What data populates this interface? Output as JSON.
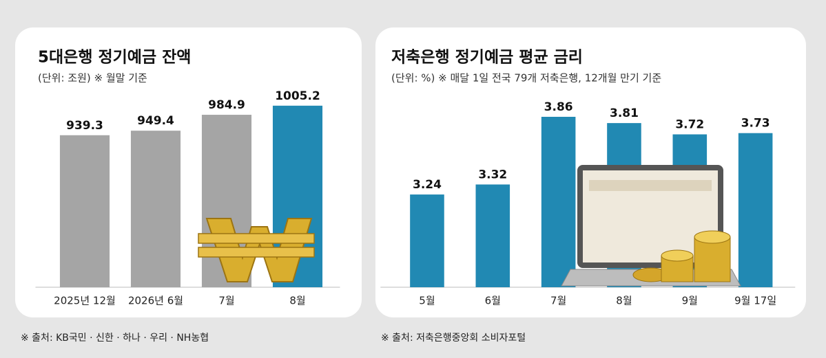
{
  "chart_data": [
    {
      "type": "bar",
      "title": "5대은행 정기예금 잔액",
      "subtitle": "(단위: 조원) ※ 월말 기준",
      "source": "※ 출처: KB국민 · 신한 · 하나 · 우리 · NH농협",
      "categories": [
        "2025년 12월",
        "2026년 6월",
        "7월",
        "8월"
      ],
      "values": [
        939.3,
        949.4,
        984.9,
        1005.2
      ],
      "colors": [
        "#a5a5a5",
        "#a5a5a5",
        "#a5a5a5",
        "#2189b3"
      ],
      "ylim": [
        600,
        1100
      ]
    },
    {
      "type": "bar",
      "title": "저축은행 정기예금 평균 금리",
      "subtitle": "(단위: %) ※ 매달 1일 전국 79개 저축은행, 12개월 만기 기준",
      "source": "※ 출처: 저축은행중앙회 소비자포털",
      "categories": [
        "5월",
        "6월",
        "7월",
        "8월",
        "9월",
        "9월 17일"
      ],
      "values": [
        3.24,
        3.32,
        3.86,
        3.81,
        3.72,
        3.73
      ],
      "colors": [
        "#2189b3",
        "#2189b3",
        "#2189b3",
        "#2189b3",
        "#2189b3",
        "#2189b3"
      ],
      "ylim": [
        2.5,
        4.2
      ]
    }
  ]
}
